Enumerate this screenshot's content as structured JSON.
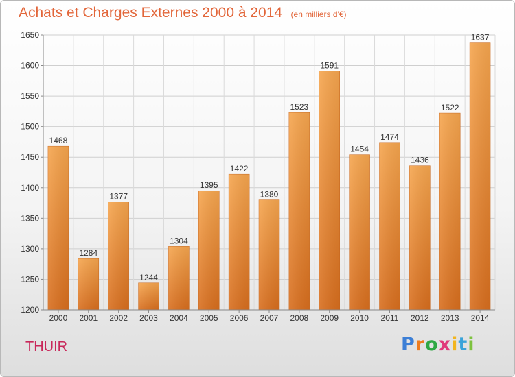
{
  "chart_data": {
    "type": "bar",
    "title": "Achats et Charges Externes 2000 à 2014",
    "subtitle": "(en milliers d'€)",
    "categories": [
      "2000",
      "2001",
      "2002",
      "2003",
      "2004",
      "2005",
      "2006",
      "2007",
      "2008",
      "2009",
      "2010",
      "2011",
      "2012",
      "2013",
      "2014"
    ],
    "values": [
      1468,
      1284,
      1377,
      1244,
      1304,
      1395,
      1422,
      1380,
      1523,
      1591,
      1454,
      1474,
      1436,
      1522,
      1637
    ],
    "ylim": [
      1200,
      1650
    ],
    "yticks": [
      1200,
      1250,
      1300,
      1350,
      1400,
      1450,
      1500,
      1550,
      1600,
      1650
    ],
    "grid": true,
    "bar_color": "#f0913c",
    "title_color": "#e2663a"
  },
  "footer": {
    "place": "THUIR",
    "logo": "Proxiti",
    "logo_colors": [
      "#3c7fd6",
      "#ee7c1e",
      "#2fa844",
      "#e0397a",
      "#f2b51f",
      "#3aa3d9",
      "#7dc23e"
    ]
  }
}
